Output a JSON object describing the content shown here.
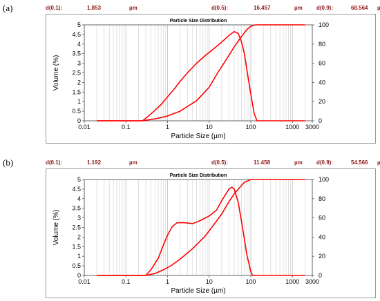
{
  "panels": [
    {
      "label": "(a)",
      "stats": [
        {
          "key": "d(0.1):",
          "value": "1.853",
          "unit": "µm"
        },
        {
          "key": "d(0.5):",
          "value": "16.457",
          "unit": "µm"
        },
        {
          "key": "d(0.9):",
          "value": "68.564",
          "unit": "µm"
        }
      ]
    },
    {
      "label": "(b)",
      "stats": [
        {
          "key": "d(0.1):",
          "value": "1.192",
          "unit": "µm"
        },
        {
          "key": "d(0.5):",
          "value": "11.458",
          "unit": "µm"
        },
        {
          "key": "d(0.9):",
          "value": "54.566",
          "unit": "µm"
        }
      ]
    }
  ],
  "chart_data": [
    {
      "type": "line",
      "title": "Particle Size Distribution",
      "xlabel": "Particle Size (µm)",
      "ylabel": "Volume (%)",
      "x_scale": "log",
      "xlim": [
        0.01,
        3000
      ],
      "ylim": [
        0,
        5
      ],
      "y2lim": [
        0,
        100
      ],
      "x_tick_labels": [
        "0.01",
        "0.1",
        "1",
        "10",
        "100",
        "1000",
        "3000"
      ],
      "y_tick_labels": [
        "0",
        "0.5",
        "1",
        "1.5",
        "2",
        "2.5",
        "3",
        "3.5",
        "4",
        "4.5",
        "5"
      ],
      "y2_tick_labels": [
        "0",
        "20",
        "40",
        "60",
        "80",
        "100"
      ],
      "grid": true,
      "color": "#ff0000",
      "series": [
        {
          "axis": "left",
          "points": [
            [
              0.02,
              0
            ],
            [
              0.25,
              0
            ],
            [
              0.35,
              0.25
            ],
            [
              0.5,
              0.55
            ],
            [
              0.7,
              0.85
            ],
            [
              1,
              1.25
            ],
            [
              1.5,
              1.7
            ],
            [
              2,
              2.05
            ],
            [
              3,
              2.5
            ],
            [
              5,
              3.0
            ],
            [
              8,
              3.4
            ],
            [
              12,
              3.7
            ],
            [
              20,
              4.1
            ],
            [
              30,
              4.45
            ],
            [
              40,
              4.65
            ],
            [
              50,
              4.55
            ],
            [
              60,
              4.1
            ],
            [
              70,
              3.5
            ],
            [
              80,
              2.7
            ],
            [
              100,
              1.4
            ],
            [
              120,
              0.4
            ],
            [
              140,
              0
            ],
            [
              2000,
              0
            ]
          ]
        },
        {
          "axis": "right",
          "points": [
            [
              0.02,
              0
            ],
            [
              0.25,
              0
            ],
            [
              0.5,
              2
            ],
            [
              1,
              5
            ],
            [
              2,
              10
            ],
            [
              5,
              21
            ],
            [
              10,
              35
            ],
            [
              16,
              50
            ],
            [
              25,
              63
            ],
            [
              40,
              77
            ],
            [
              60,
              88
            ],
            [
              80,
              95
            ],
            [
              100,
              98.5
            ],
            [
              130,
              100
            ],
            [
              2000,
              100
            ]
          ]
        }
      ]
    },
    {
      "type": "line",
      "title": "Particle Size Distribution",
      "xlabel": "Particle Size (µm)",
      "ylabel": "Volume (%)",
      "x_scale": "log",
      "xlim": [
        0.01,
        3000
      ],
      "ylim": [
        0,
        5
      ],
      "y2lim": [
        0,
        100
      ],
      "x_tick_labels": [
        "0.01",
        "0.1",
        "1",
        "10",
        "100",
        "1000",
        "3000"
      ],
      "y_tick_labels": [
        "0",
        "0.5",
        "1",
        "1.5",
        "2",
        "2.5",
        "3",
        "3.5",
        "4",
        "4.5",
        "5"
      ],
      "y2_tick_labels": [
        "0",
        "20",
        "40",
        "60",
        "80",
        "100"
      ],
      "grid": true,
      "color": "#ff0000",
      "series": [
        {
          "axis": "left",
          "points": [
            [
              0.02,
              0
            ],
            [
              0.3,
              0
            ],
            [
              0.4,
              0.3
            ],
            [
              0.6,
              0.9
            ],
            [
              0.8,
              1.6
            ],
            [
              1,
              2.1
            ],
            [
              1.3,
              2.55
            ],
            [
              1.7,
              2.75
            ],
            [
              2.5,
              2.75
            ],
            [
              4,
              2.7
            ],
            [
              6,
              2.85
            ],
            [
              10,
              3.1
            ],
            [
              15,
              3.4
            ],
            [
              20,
              3.9
            ],
            [
              30,
              4.5
            ],
            [
              35,
              4.6
            ],
            [
              40,
              4.5
            ],
            [
              50,
              3.8
            ],
            [
              60,
              2.8
            ],
            [
              70,
              1.9
            ],
            [
              80,
              1.1
            ],
            [
              100,
              0.2
            ],
            [
              110,
              0
            ],
            [
              2000,
              0
            ]
          ]
        },
        {
          "axis": "right",
          "points": [
            [
              0.02,
              0
            ],
            [
              0.3,
              0
            ],
            [
              0.5,
              2
            ],
            [
              0.8,
              6
            ],
            [
              1.2,
              10
            ],
            [
              2,
              17
            ],
            [
              4,
              28
            ],
            [
              8,
              41
            ],
            [
              11.5,
              50
            ],
            [
              20,
              64
            ],
            [
              30,
              77
            ],
            [
              40,
              85
            ],
            [
              55,
              92
            ],
            [
              70,
              97
            ],
            [
              100,
              100
            ],
            [
              2000,
              100
            ]
          ]
        }
      ]
    }
  ]
}
